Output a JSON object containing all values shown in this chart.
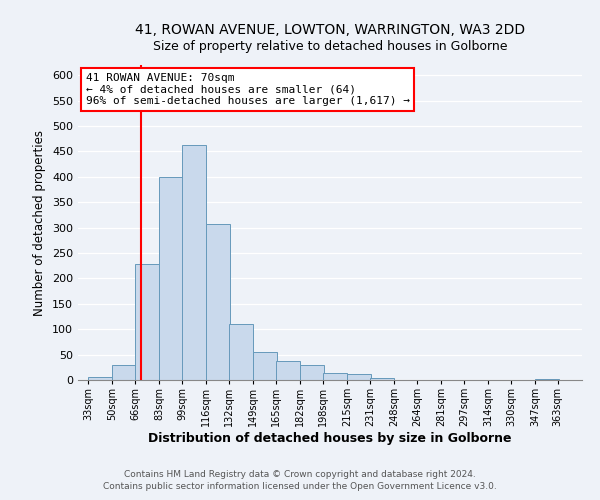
{
  "title": "41, ROWAN AVENUE, LOWTON, WARRINGTON, WA3 2DD",
  "subtitle": "Size of property relative to detached houses in Golborne",
  "xlabel": "Distribution of detached houses by size in Golborne",
  "ylabel": "Number of detached properties",
  "bar_left_edges": [
    33,
    50,
    66,
    83,
    99,
    116,
    132,
    149,
    165,
    182,
    198,
    215,
    231,
    248,
    264,
    281,
    297,
    314,
    330,
    347
  ],
  "bar_heights": [
    5,
    30,
    228,
    400,
    463,
    308,
    111,
    55,
    38,
    29,
    14,
    11,
    4,
    0,
    0,
    0,
    0,
    0,
    0,
    2
  ],
  "bin_width": 17,
  "bar_color": "#c9d9ec",
  "bar_edge_color": "#6699bb",
  "property_line_x": 70,
  "property_line_color": "red",
  "ylim": [
    0,
    620
  ],
  "yticks": [
    0,
    50,
    100,
    150,
    200,
    250,
    300,
    350,
    400,
    450,
    500,
    550,
    600
  ],
  "xtick_labels": [
    "33sqm",
    "50sqm",
    "66sqm",
    "83sqm",
    "99sqm",
    "116sqm",
    "132sqm",
    "149sqm",
    "165sqm",
    "182sqm",
    "198sqm",
    "215sqm",
    "231sqm",
    "248sqm",
    "264sqm",
    "281sqm",
    "297sqm",
    "314sqm",
    "330sqm",
    "347sqm",
    "363sqm"
  ],
  "xtick_positions": [
    33,
    50,
    66,
    83,
    99,
    116,
    132,
    149,
    165,
    182,
    198,
    215,
    231,
    248,
    264,
    281,
    297,
    314,
    330,
    347,
    363
  ],
  "annotation_title": "41 ROWAN AVENUE: 70sqm",
  "annotation_line1": "← 4% of detached houses are smaller (64)",
  "annotation_line2": "96% of semi-detached houses are larger (1,617) →",
  "footer_line1": "Contains HM Land Registry data © Crown copyright and database right 2024.",
  "footer_line2": "Contains public sector information licensed under the Open Government Licence v3.0.",
  "bg_color": "#eef2f8",
  "grid_color": "#d0d8e8",
  "title_fontsize": 10,
  "subtitle_fontsize": 9,
  "ylabel_fontsize": 8.5,
  "xlabel_fontsize": 9
}
